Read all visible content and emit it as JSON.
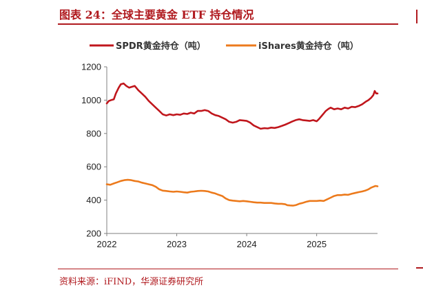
{
  "figure_title": "图表 24：全球主要黄金 ETF 持仓情况",
  "source_note": "资料来源：iFIND，华源证券研究所",
  "chart_data": {
    "type": "line",
    "title": "",
    "xlabel": "",
    "ylabel": "",
    "xlim": [
      2022.0,
      2025.87
    ],
    "ylim": [
      200,
      1200
    ],
    "y_ticks": [
      "200",
      "400",
      "600",
      "800",
      "1000",
      "1200"
    ],
    "x_ticks": [
      "2022",
      "2023",
      "2024",
      "2025"
    ],
    "grid": false,
    "legend_position": "top",
    "series": [
      {
        "name": "SPDR黄金持仓（吨）",
        "color": "#c0161c",
        "points": [
          [
            2022.0,
            980
          ],
          [
            2022.03,
            995
          ],
          [
            2022.06,
            1000
          ],
          [
            2022.1,
            1005
          ],
          [
            2022.13,
            1040
          ],
          [
            2022.17,
            1075
          ],
          [
            2022.2,
            1095
          ],
          [
            2022.24,
            1100
          ],
          [
            2022.28,
            1085
          ],
          [
            2022.32,
            1075
          ],
          [
            2022.36,
            1080
          ],
          [
            2022.4,
            1085
          ],
          [
            2022.45,
            1060
          ],
          [
            2022.5,
            1040
          ],
          [
            2022.55,
            1020
          ],
          [
            2022.6,
            995
          ],
          [
            2022.65,
            975
          ],
          [
            2022.7,
            955
          ],
          [
            2022.75,
            935
          ],
          [
            2022.8,
            915
          ],
          [
            2022.85,
            908
          ],
          [
            2022.9,
            915
          ],
          [
            2022.95,
            910
          ],
          [
            2023.0,
            915
          ],
          [
            2023.05,
            912
          ],
          [
            2023.1,
            920
          ],
          [
            2023.15,
            917
          ],
          [
            2023.2,
            925
          ],
          [
            2023.25,
            920
          ],
          [
            2023.3,
            935
          ],
          [
            2023.35,
            935
          ],
          [
            2023.4,
            940
          ],
          [
            2023.45,
            935
          ],
          [
            2023.5,
            920
          ],
          [
            2023.55,
            910
          ],
          [
            2023.6,
            905
          ],
          [
            2023.65,
            895
          ],
          [
            2023.7,
            885
          ],
          [
            2023.75,
            870
          ],
          [
            2023.8,
            865
          ],
          [
            2023.85,
            870
          ],
          [
            2023.9,
            880
          ],
          [
            2023.95,
            878
          ],
          [
            2024.0,
            875
          ],
          [
            2024.05,
            865
          ],
          [
            2024.1,
            848
          ],
          [
            2024.15,
            838
          ],
          [
            2024.2,
            828
          ],
          [
            2024.25,
            832
          ],
          [
            2024.3,
            830
          ],
          [
            2024.35,
            835
          ],
          [
            2024.4,
            833
          ],
          [
            2024.45,
            838
          ],
          [
            2024.5,
            845
          ],
          [
            2024.55,
            853
          ],
          [
            2024.6,
            862
          ],
          [
            2024.65,
            872
          ],
          [
            2024.7,
            880
          ],
          [
            2024.75,
            885
          ],
          [
            2024.8,
            880
          ],
          [
            2024.85,
            878
          ],
          [
            2024.9,
            875
          ],
          [
            2024.95,
            880
          ],
          [
            2025.0,
            873
          ],
          [
            2025.03,
            885
          ],
          [
            2025.07,
            905
          ],
          [
            2025.1,
            920
          ],
          [
            2025.13,
            935
          ],
          [
            2025.17,
            948
          ],
          [
            2025.2,
            955
          ],
          [
            2025.25,
            945
          ],
          [
            2025.3,
            950
          ],
          [
            2025.35,
            945
          ],
          [
            2025.4,
            955
          ],
          [
            2025.45,
            950
          ],
          [
            2025.5,
            960
          ],
          [
            2025.55,
            958
          ],
          [
            2025.6,
            965
          ],
          [
            2025.65,
            975
          ],
          [
            2025.7,
            990
          ],
          [
            2025.74,
            1000
          ],
          [
            2025.78,
            1015
          ],
          [
            2025.81,
            1030
          ],
          [
            2025.83,
            1055
          ],
          [
            2025.85,
            1040
          ],
          [
            2025.87,
            1040
          ]
        ]
      },
      {
        "name": "iShares黄金持仓（吨）",
        "color": "#ec7a1c",
        "points": [
          [
            2022.0,
            495
          ],
          [
            2022.05,
            492
          ],
          [
            2022.1,
            500
          ],
          [
            2022.15,
            507
          ],
          [
            2022.2,
            515
          ],
          [
            2022.25,
            520
          ],
          [
            2022.3,
            522
          ],
          [
            2022.35,
            520
          ],
          [
            2022.4,
            515
          ],
          [
            2022.45,
            512
          ],
          [
            2022.5,
            505
          ],
          [
            2022.55,
            500
          ],
          [
            2022.6,
            495
          ],
          [
            2022.65,
            490
          ],
          [
            2022.7,
            480
          ],
          [
            2022.75,
            465
          ],
          [
            2022.8,
            457
          ],
          [
            2022.85,
            455
          ],
          [
            2022.9,
            452
          ],
          [
            2022.95,
            450
          ],
          [
            2023.0,
            452
          ],
          [
            2023.05,
            450
          ],
          [
            2023.1,
            447
          ],
          [
            2023.15,
            445
          ],
          [
            2023.2,
            450
          ],
          [
            2023.25,
            452
          ],
          [
            2023.3,
            455
          ],
          [
            2023.35,
            456
          ],
          [
            2023.4,
            455
          ],
          [
            2023.45,
            452
          ],
          [
            2023.5,
            445
          ],
          [
            2023.55,
            440
          ],
          [
            2023.6,
            432
          ],
          [
            2023.65,
            425
          ],
          [
            2023.7,
            410
          ],
          [
            2023.75,
            400
          ],
          [
            2023.8,
            397
          ],
          [
            2023.85,
            395
          ],
          [
            2023.9,
            393
          ],
          [
            2023.95,
            395
          ],
          [
            2024.0,
            393
          ],
          [
            2024.05,
            390
          ],
          [
            2024.1,
            387
          ],
          [
            2024.15,
            385
          ],
          [
            2024.2,
            385
          ],
          [
            2024.25,
            383
          ],
          [
            2024.3,
            383
          ],
          [
            2024.35,
            383
          ],
          [
            2024.4,
            380
          ],
          [
            2024.45,
            378
          ],
          [
            2024.5,
            378
          ],
          [
            2024.55,
            375
          ],
          [
            2024.58,
            370
          ],
          [
            2024.62,
            368
          ],
          [
            2024.66,
            367
          ],
          [
            2024.7,
            370
          ],
          [
            2024.75,
            378
          ],
          [
            2024.8,
            383
          ],
          [
            2024.85,
            390
          ],
          [
            2024.9,
            395
          ],
          [
            2024.95,
            395
          ],
          [
            2025.0,
            395
          ],
          [
            2025.05,
            397
          ],
          [
            2025.1,
            395
          ],
          [
            2025.15,
            405
          ],
          [
            2025.2,
            415
          ],
          [
            2025.25,
            425
          ],
          [
            2025.3,
            430
          ],
          [
            2025.35,
            430
          ],
          [
            2025.4,
            433
          ],
          [
            2025.45,
            432
          ],
          [
            2025.5,
            438
          ],
          [
            2025.55,
            443
          ],
          [
            2025.6,
            448
          ],
          [
            2025.65,
            452
          ],
          [
            2025.7,
            458
          ],
          [
            2025.74,
            465
          ],
          [
            2025.78,
            475
          ],
          [
            2025.81,
            480
          ],
          [
            2025.84,
            485
          ],
          [
            2025.87,
            483
          ]
        ]
      }
    ]
  }
}
